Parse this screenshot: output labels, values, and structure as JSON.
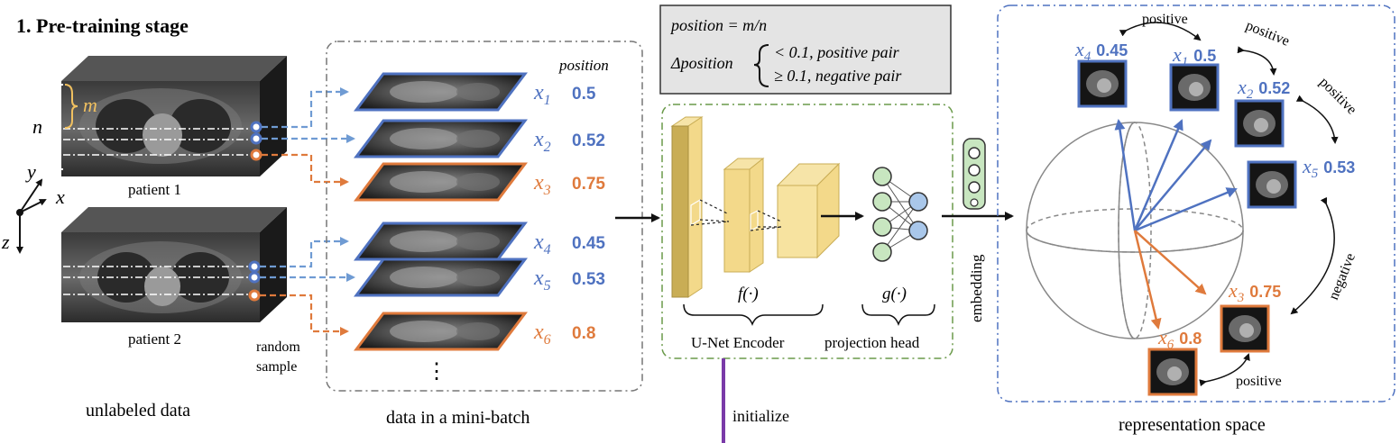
{
  "title": "1. Pre-training stage",
  "colors": {
    "blue": "#4f72c0",
    "orange": "#df7a3c",
    "box_bg": "#e4e4e4",
    "encoder_fill": "#f3d98a",
    "encoder_front": "#c9ad55",
    "purple": "#7a3aa8",
    "projection_node_green": "#c8e6c0",
    "projection_node_blue": "#a9c7ea"
  },
  "patients": {
    "patient1_label": "patient 1",
    "patient2_label": "patient 2",
    "m_label": "m",
    "n_label": "n",
    "axis_x": "x",
    "axis_y": "y",
    "axis_z": "z"
  },
  "random_sample": [
    "random",
    "sample"
  ],
  "unlabeled_caption": "unlabeled data",
  "minibatch": {
    "caption": "data in a mini-batch",
    "position_header": "position",
    "ellipsis": "⋮",
    "slices": [
      {
        "name": "x",
        "sub": "1",
        "pos": "0.5",
        "color": "blue"
      },
      {
        "name": "x",
        "sub": "2",
        "pos": "0.52",
        "color": "blue"
      },
      {
        "name": "x",
        "sub": "3",
        "pos": "0.75",
        "color": "orange"
      },
      {
        "name": "x",
        "sub": "4",
        "pos": "0.45",
        "color": "blue"
      },
      {
        "name": "x",
        "sub": "5",
        "pos": "0.53",
        "color": "blue"
      },
      {
        "name": "x",
        "sub": "6",
        "pos": "0.8",
        "color": "orange"
      }
    ]
  },
  "formula": {
    "line1": "position = m/n",
    "line2_lhs": "Δposition",
    "case1": "< 0.1, positive pair",
    "case2": "≥ 0.1, negative pair"
  },
  "encoder": {
    "f_label": "f(·)",
    "g_label": "g(·)",
    "unet_label": "U-Net Encoder",
    "projection_label": "projection head",
    "embedding_label": "embedding",
    "initialize_label": "initialize"
  },
  "representation": {
    "caption": "representation space",
    "positive": "positive",
    "negative": "negative",
    "points": [
      {
        "name": "x",
        "sub": "4",
        "pos": "0.45",
        "color": "blue"
      },
      {
        "name": "x",
        "sub": "1",
        "pos": "0.5",
        "color": "blue"
      },
      {
        "name": "x",
        "sub": "2",
        "pos": "0.52",
        "color": "blue"
      },
      {
        "name": "x",
        "sub": "5",
        "pos": "0.53",
        "color": "blue"
      },
      {
        "name": "x",
        "sub": "3",
        "pos": "0.75",
        "color": "orange"
      },
      {
        "name": "x",
        "sub": "6",
        "pos": "0.8",
        "color": "orange"
      }
    ]
  }
}
